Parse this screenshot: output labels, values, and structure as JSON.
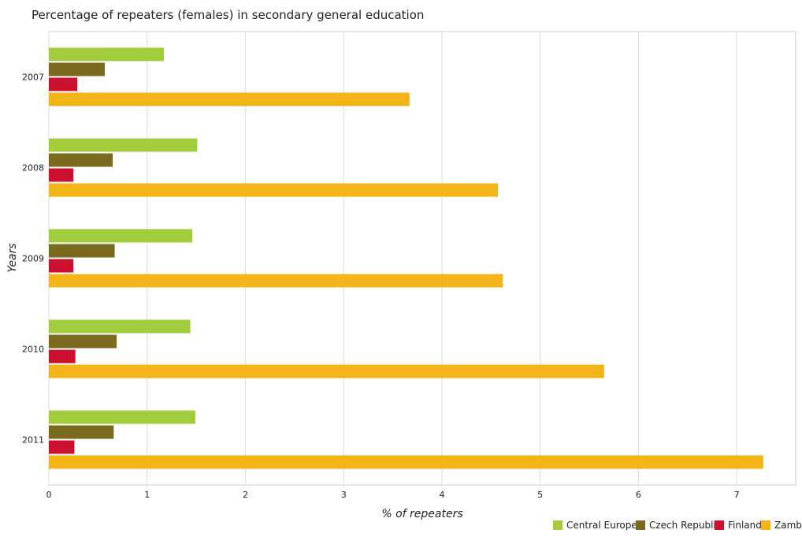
{
  "chart_data": {
    "type": "bar",
    "orientation": "horizontal",
    "title": "Percentage of repeaters (females) in secondary general education",
    "xlabel": "% of repeaters",
    "ylabel": "Years",
    "categories": [
      "2007",
      "2008",
      "2009",
      "2010",
      "2011"
    ],
    "xlim": [
      0,
      7.6
    ],
    "xticks": [
      0,
      1,
      2,
      3,
      4,
      5,
      6,
      7
    ],
    "grid": true,
    "legend_position": "bottom-right",
    "series": [
      {
        "name": "Central Europe",
        "color": "#a3cc3d",
        "values": [
          1.17,
          1.51,
          1.46,
          1.44,
          1.49
        ]
      },
      {
        "name": "Czech Republic",
        "color": "#7a6a1e",
        "values": [
          0.57,
          0.65,
          0.67,
          0.69,
          0.66
        ]
      },
      {
        "name": "Finland",
        "color": "#cc1030",
        "values": [
          0.29,
          0.25,
          0.25,
          0.27,
          0.26
        ]
      },
      {
        "name": "Zambia",
        "color": "#f2b418",
        "values": [
          3.67,
          4.57,
          4.62,
          5.65,
          7.27
        ]
      }
    ]
  }
}
